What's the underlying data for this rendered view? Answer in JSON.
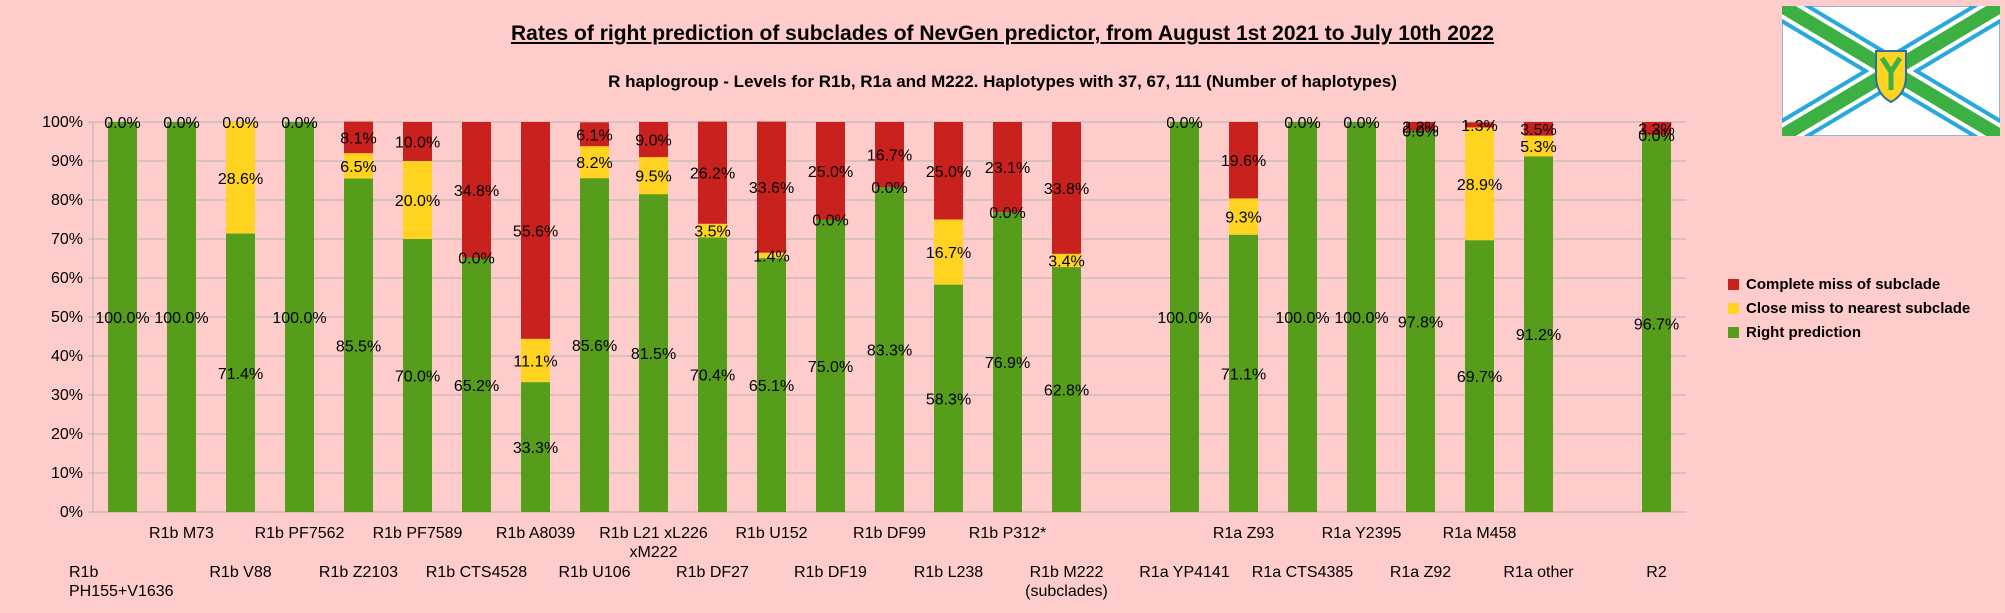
{
  "chart_data": {
    "type": "bar",
    "stacked": true,
    "title": "Rates of right prediction of subclades of NevGen predictor, from August 1st 2021 to July 10th 2022",
    "subtitle": "R haplogroup - Levels for R1b, R1a and M222. Haplotypes with 37, 67, 111 (Number of haplotypes)",
    "ylim": [
      0,
      100
    ],
    "yticks": [
      "0%",
      "10%",
      "20%",
      "30%",
      "40%",
      "50%",
      "60%",
      "70%",
      "80%",
      "90%",
      "100%"
    ],
    "grid": true,
    "legend_position": "right",
    "categories": [
      "R1b PH155+V1636",
      "R1b M73",
      "R1b V88",
      "R1b PF7562",
      "R1b Z2103",
      "R1b PF7589",
      "R1b CTS4528",
      "R1b A8039",
      "R1b U106",
      "R1b L21 xL226 xM222",
      "R1b DF27",
      "R1b U152",
      "R1b DF19",
      "R1b DF99",
      "R1b L238",
      "R1b P312*",
      "R1b M222 (subclades)",
      "",
      "R1a YP4141",
      "R1a Z93",
      "R1a CTS4385",
      "R1a Y2395",
      "R1a Z92",
      "R1a M458",
      "R1a other",
      "",
      "R2"
    ],
    "category_labels": [
      [
        "R1b",
        "PH155+V1636"
      ],
      [
        "R1b M73"
      ],
      [
        "R1b V88"
      ],
      [
        "R1b PF7562"
      ],
      [
        "R1b Z2103"
      ],
      [
        "R1b PF7589"
      ],
      [
        "R1b CTS4528"
      ],
      [
        "R1b A8039"
      ],
      [
        "R1b U106"
      ],
      [
        "R1b L21 xL226",
        "xM222"
      ],
      [
        "R1b DF27"
      ],
      [
        "R1b U152"
      ],
      [
        "R1b DF19"
      ],
      [
        "R1b DF99"
      ],
      [
        "R1b L238"
      ],
      [
        "R1b P312*"
      ],
      [
        "R1b M222",
        "(subclades)"
      ],
      [],
      [
        "R1a YP4141"
      ],
      [
        "R1a Z93"
      ],
      [
        "R1a CTS4385"
      ],
      [
        "R1a Y2395"
      ],
      [
        "R1a Z92"
      ],
      [
        "R1a M458"
      ],
      [
        "R1a other"
      ],
      [],
      [
        "R2"
      ]
    ],
    "series": [
      {
        "name": "Right prediction",
        "color": "#579d1c",
        "values": [
          100.0,
          100.0,
          71.4,
          100.0,
          85.5,
          70.0,
          65.2,
          33.3,
          85.6,
          81.5,
          70.4,
          65.1,
          75.0,
          83.3,
          58.3,
          76.9,
          62.8,
          null,
          100.0,
          71.1,
          100.0,
          100.0,
          97.8,
          69.7,
          91.2,
          null,
          96.7
        ],
        "labels": [
          "100.0%",
          "100.0%",
          "71.4%",
          "100.0%",
          "85.5%",
          "70.0%",
          "65.2%",
          "33.3%",
          "85.6%",
          "81.5%",
          "70.4%",
          "65.1%",
          "75.0%",
          "83.3%",
          "58.3%",
          "76.9%",
          "62.8%",
          "",
          "100.0%",
          "71.1%",
          "100.0%",
          "100.0%",
          "97.8%",
          "69.7%",
          "91.2%",
          "",
          "96.7%"
        ]
      },
      {
        "name": "Close miss to nearest subclade",
        "color": "#ffd320",
        "values": [
          0,
          0,
          28.6,
          0,
          6.5,
          20.0,
          0,
          11.1,
          8.2,
          9.5,
          3.5,
          1.4,
          0,
          0,
          16.7,
          0,
          3.4,
          null,
          0,
          9.3,
          0,
          0,
          0,
          28.9,
          5.3,
          null,
          0
        ],
        "labels": [
          "",
          "",
          "28.6%",
          "",
          "6.5%",
          "20.0%",
          "0.0%",
          "11.1%",
          "8.2%",
          "9.5%",
          "3.5%",
          "1.4%",
          "0.0%",
          "0.0%",
          "16.7%",
          "0.0%",
          "3.4%",
          "",
          "",
          "9.3%",
          "",
          "",
          "0.0%",
          "28.9%",
          "5.3%",
          "",
          "0.0%"
        ]
      },
      {
        "name": "Complete miss of subclade",
        "color": "#c9211e",
        "values": [
          0,
          0,
          0,
          0,
          8.1,
          10.0,
          34.8,
          55.6,
          6.1,
          9.0,
          26.2,
          33.6,
          25.0,
          16.7,
          25.0,
          23.1,
          33.8,
          null,
          0,
          19.6,
          0,
          0,
          2.2,
          1.3,
          3.5,
          null,
          3.3
        ],
        "labels": [
          "0.0%",
          "0.0%",
          "0.0%",
          "0.0%",
          "8.1%",
          "10.0%",
          "34.8%",
          "55.6%",
          "6.1%",
          "9.0%",
          "26.2%",
          "33.6%",
          "25.0%",
          "16.7%",
          "25.0%",
          "23.1%",
          "33.8%",
          "",
          "0.0%",
          "19.6%",
          "0.0%",
          "0.0%",
          "2.2%",
          "1.3%",
          "3.5%",
          "",
          "3.3%"
        ]
      }
    ]
  },
  "logo": {
    "name": "flag-emblem",
    "colors": {
      "field": "#ffffff",
      "cross": "#3cb043",
      "edge": "#29a8e0",
      "shield": "#ffd320"
    }
  }
}
